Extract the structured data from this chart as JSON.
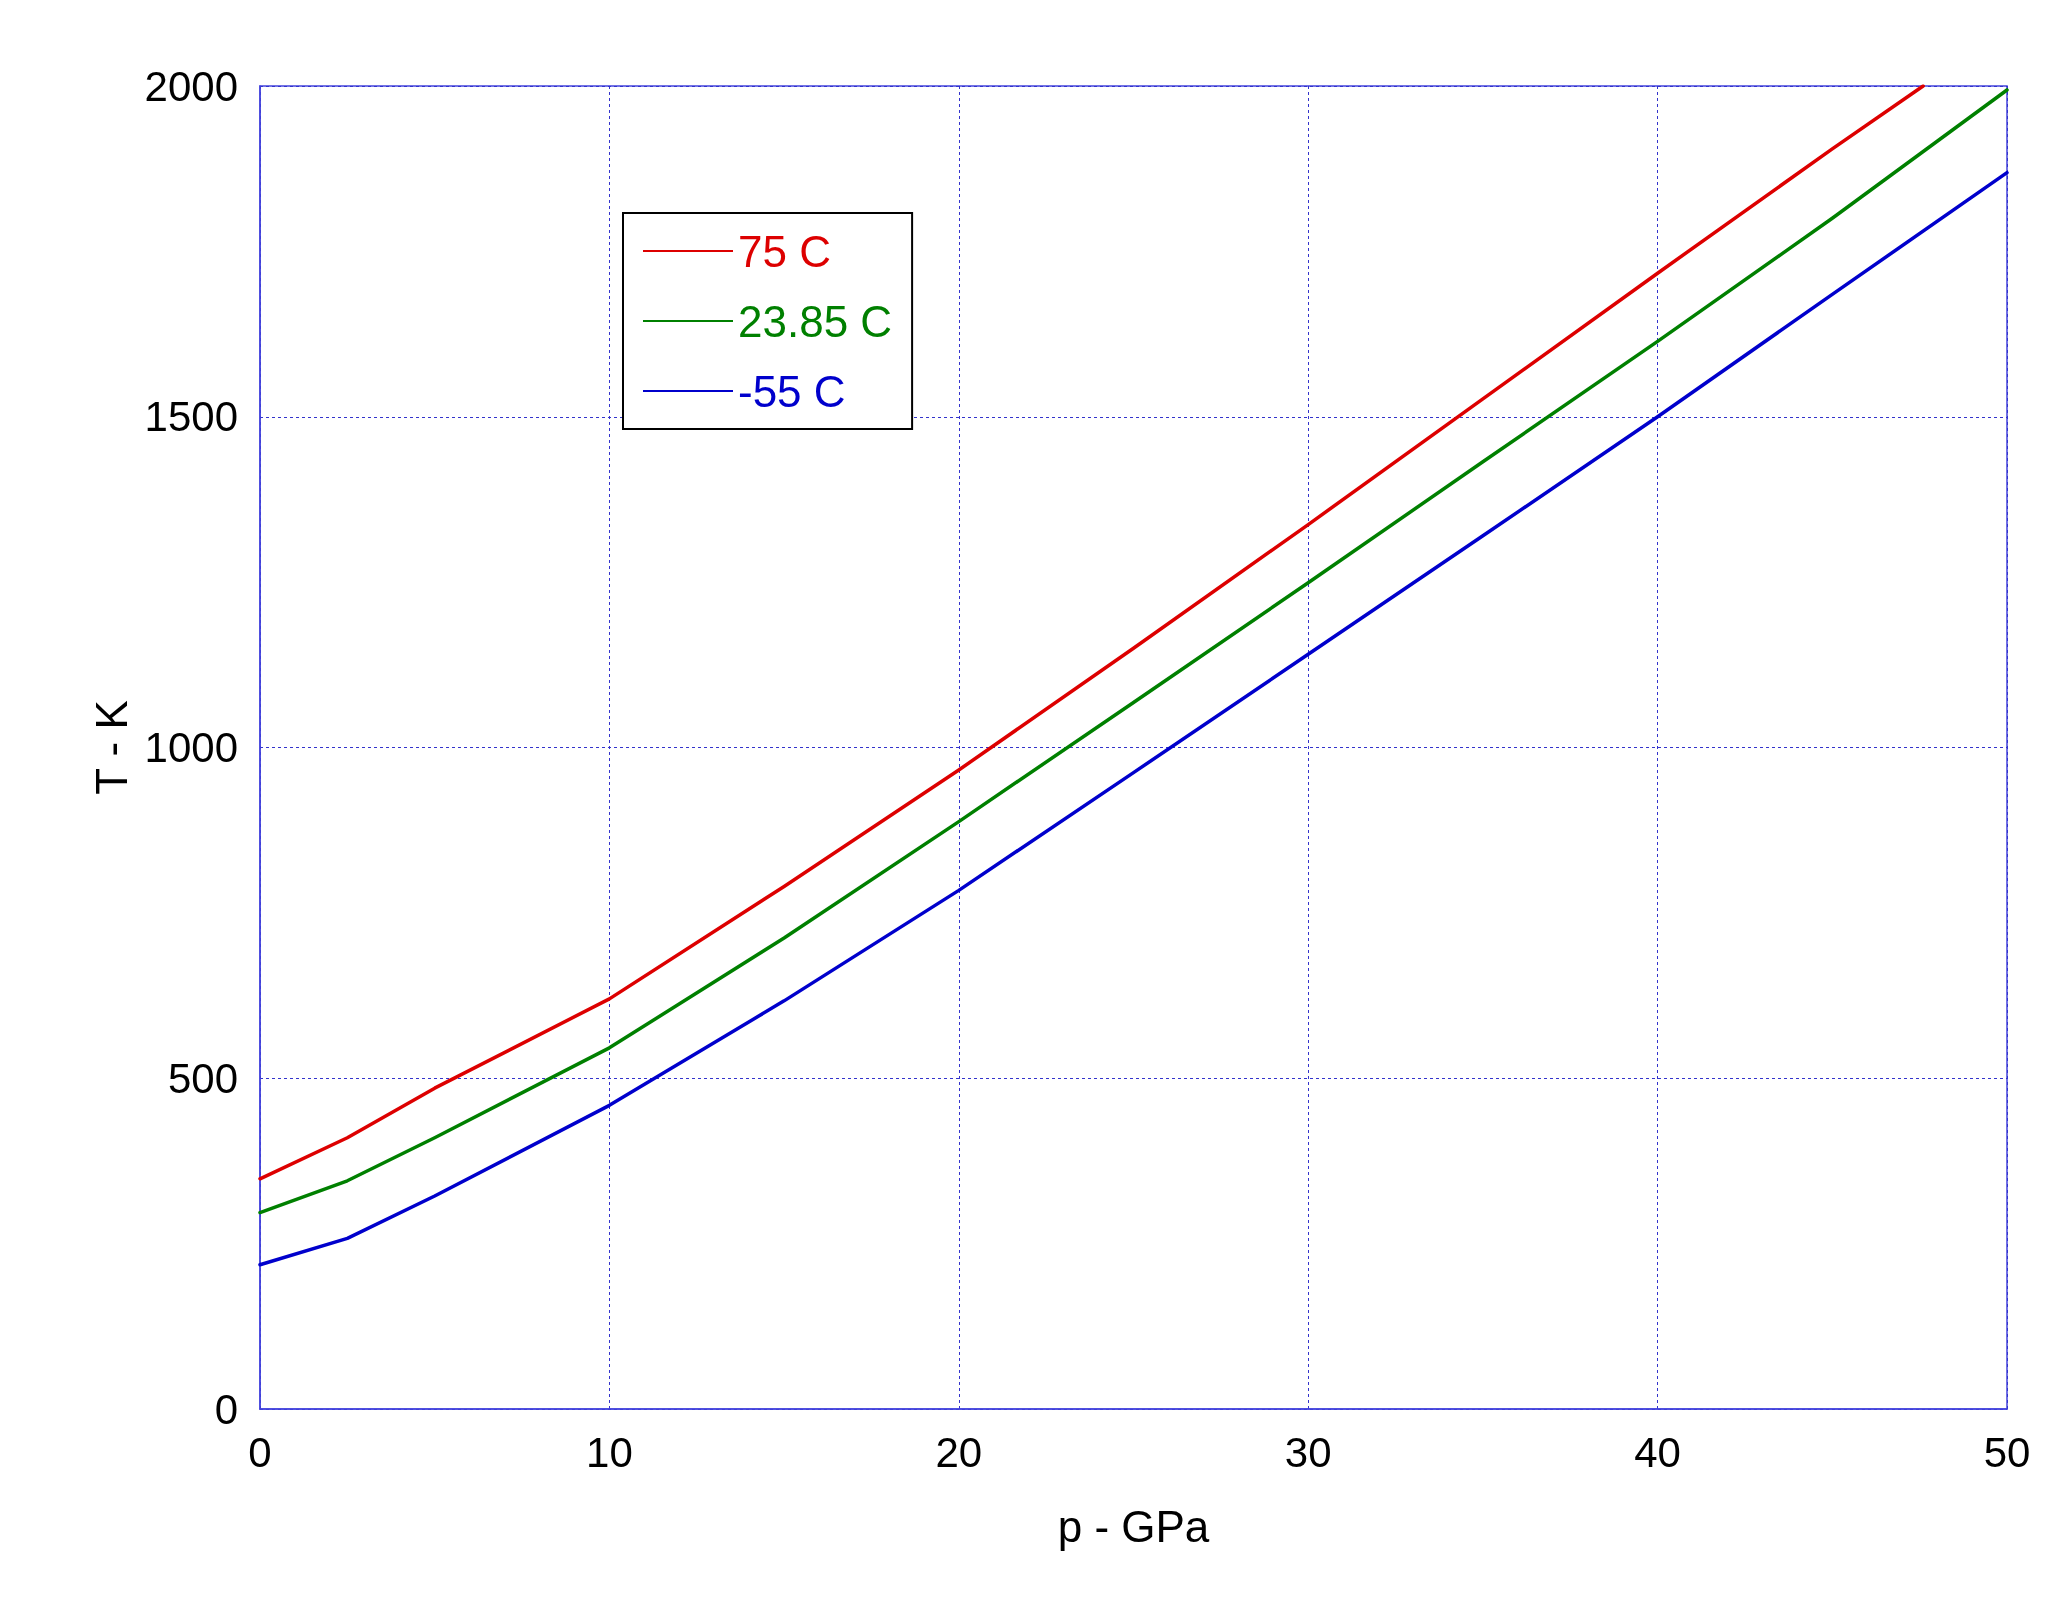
{
  "chart_data": {
    "type": "line",
    "xlabel": "p - GPa",
    "ylabel": "T - K",
    "xlim": [
      0,
      50
    ],
    "xticks": [
      0,
      10,
      20,
      30,
      40,
      50
    ],
    "ylim": [
      0,
      2000
    ],
    "yticks": [
      0,
      500,
      1000,
      1500,
      2000
    ],
    "grid": true,
    "legend": "top left",
    "marker": "none",
    "line_style": "solid",
    "series": [
      {
        "name": "75 C",
        "color": "#dd0000",
        "x": [
          0,
          2.5,
          5,
          10,
          15,
          20,
          25,
          30,
          35,
          40,
          45,
          47.6
        ],
        "values": [
          348,
          410,
          485,
          620,
          790,
          966,
          1150,
          1337,
          1527,
          1717,
          1905,
          2000
        ]
      },
      {
        "name": "23.85 C",
        "color": "#008000",
        "x": [
          0,
          2.5,
          5,
          10,
          15,
          20,
          25,
          30,
          35,
          40,
          45,
          50
        ],
        "values": [
          297,
          345,
          410,
          546,
          712,
          888,
          1068,
          1249,
          1432,
          1614,
          1800,
          1994
        ]
      },
      {
        "name": "-55 C",
        "color": "#0000cc",
        "x": [
          0,
          2.5,
          5,
          10,
          15,
          20,
          25,
          30,
          35,
          40,
          45,
          50
        ],
        "values": [
          218,
          258,
          322,
          459,
          617,
          784,
          962,
          1141,
          1320,
          1500,
          1685,
          1869
        ]
      }
    ]
  }
}
